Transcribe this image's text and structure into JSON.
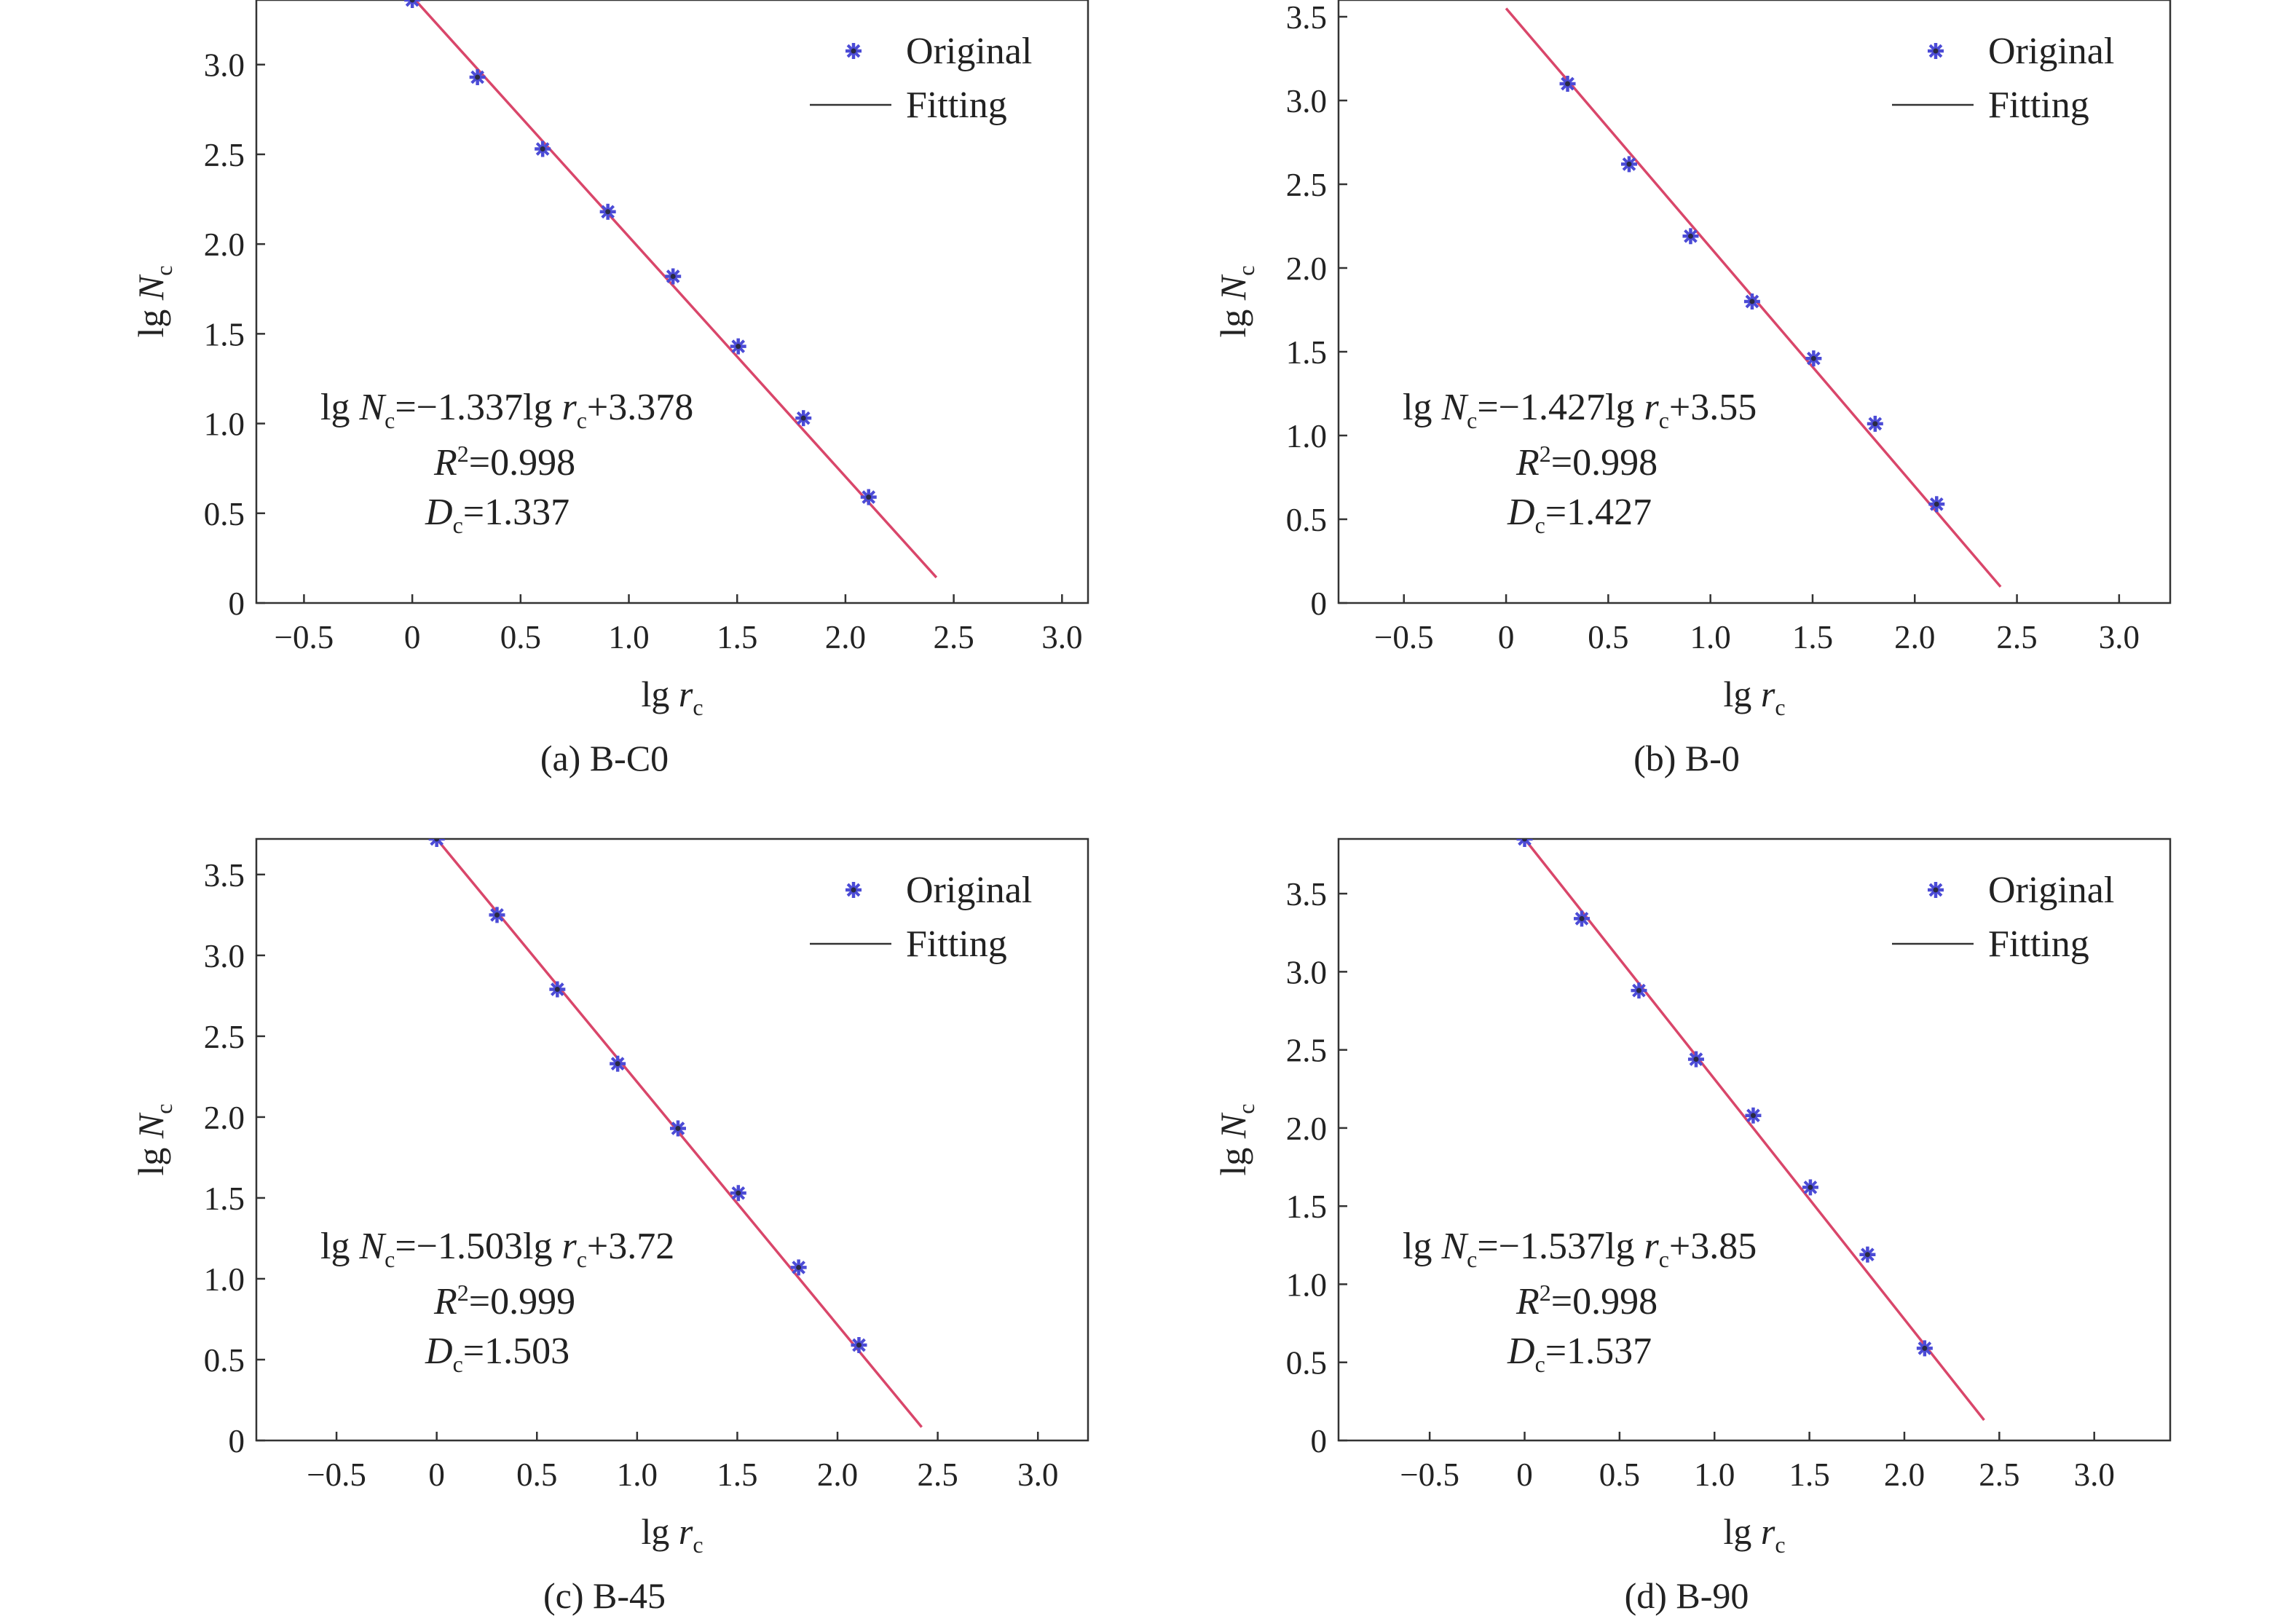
{
  "colors": {
    "marker": "#4b4bd6",
    "marker_dark": "#2a2a44",
    "fit_line": "#d9466a",
    "axis": "#333333",
    "text": "#222222"
  },
  "chart_data": [
    {
      "type": "scatter",
      "caption": "(a) B-C0",
      "xlabel": "lg r_c",
      "ylabel": "lg N_c",
      "xlim": [
        -0.72,
        3.12
      ],
      "ylim": [
        0,
        3.36
      ],
      "xticks": [
        -0.5,
        0,
        0.5,
        1.0,
        1.5,
        2.0,
        2.5,
        3.0
      ],
      "xtick_labels": [
        "−0.5",
        "0",
        "0.5",
        "1.0",
        "1.5",
        "2.0",
        "2.5",
        "3.0"
      ],
      "yticks": [
        0,
        0.5,
        1.0,
        1.5,
        2.0,
        2.5,
        3.0
      ],
      "ytick_labels": [
        "0",
        "0.5",
        "1.0",
        "1.5",
        "2.0",
        "2.5",
        "3.0"
      ],
      "grid": false,
      "legend": {
        "position": "top-right",
        "entries": [
          "Original",
          "Fitting"
        ]
      },
      "series": [
        {
          "name": "Original",
          "kind": "scatter",
          "marker": "*",
          "x": [
            0,
            0.301,
            0.602,
            0.903,
            1.204,
            1.505,
            1.806,
            2.107
          ],
          "y": [
            3.36,
            2.93,
            2.53,
            2.18,
            1.82,
            1.43,
            1.03,
            0.59
          ]
        },
        {
          "name": "Fitting",
          "kind": "line",
          "slope": -1.337,
          "intercept": 3.378,
          "x_range": [
            0,
            2.42
          ]
        }
      ],
      "equation": {
        "eq_pre": "lg ",
        "eq_mid": "=−1.337lg ",
        "eq_post": "+3.378",
        "r2_label": "R",
        "r2_sup": "2",
        "r2_value": "=0.998",
        "dc_label": "D",
        "dc_value": "=1.337"
      }
    },
    {
      "type": "scatter",
      "caption": "(b) B-0",
      "xlabel": "lg r_c",
      "ylabel": "lg N_c",
      "xlim": [
        -0.82,
        3.25
      ],
      "ylim": [
        0,
        3.6
      ],
      "xticks": [
        -0.5,
        0,
        0.5,
        1.0,
        1.5,
        2.0,
        2.5,
        3.0
      ],
      "xtick_labels": [
        "−0.5",
        "0",
        "0.5",
        "1.0",
        "1.5",
        "2.0",
        "2.5",
        "3.0"
      ],
      "yticks": [
        0,
        0.5,
        1.0,
        1.5,
        2.0,
        2.5,
        3.0,
        3.5
      ],
      "ytick_labels": [
        "0",
        "0.5",
        "1.0",
        "1.5",
        "2.0",
        "2.5",
        "3.0",
        "3.5"
      ],
      "grid": false,
      "legend": {
        "position": "top-right",
        "entries": [
          "Original",
          "Fitting"
        ]
      },
      "series": [
        {
          "name": "Original",
          "kind": "scatter",
          "marker": "*",
          "x": [
            0.301,
            0.602,
            0.903,
            1.204,
            1.505,
            1.806,
            2.107
          ],
          "y": [
            3.1,
            2.62,
            2.19,
            1.8,
            1.46,
            1.07,
            0.59
          ]
        },
        {
          "name": "Fitting",
          "kind": "line",
          "slope": -1.427,
          "intercept": 3.55,
          "x_range": [
            0,
            2.42
          ]
        }
      ],
      "equation": {
        "eq_pre": "lg ",
        "eq_mid": "=−1.427lg ",
        "eq_post": "+3.55",
        "r2_label": "R",
        "r2_sup": "2",
        "r2_value": "=0.998",
        "dc_label": "D",
        "dc_value": "=1.427"
      }
    },
    {
      "type": "scatter",
      "caption": "(c) B-45",
      "xlabel": "lg r_c",
      "ylabel": "lg N_c",
      "xlim": [
        -0.9,
        3.25
      ],
      "ylim": [
        0,
        3.72
      ],
      "xticks": [
        -0.5,
        0,
        0.5,
        1.0,
        1.5,
        2.0,
        2.5,
        3.0
      ],
      "xtick_labels": [
        "−0.5",
        "0",
        "0.5",
        "1.0",
        "1.5",
        "2.0",
        "2.5",
        "3.0"
      ],
      "yticks": [
        0,
        0.5,
        1.0,
        1.5,
        2.0,
        2.5,
        3.0,
        3.5
      ],
      "ytick_labels": [
        "0",
        "0.5",
        "1.0",
        "1.5",
        "2.0",
        "2.5",
        "3.0",
        "3.5"
      ],
      "grid": false,
      "legend": {
        "position": "top-right",
        "entries": [
          "Original",
          "Fitting"
        ]
      },
      "series": [
        {
          "name": "Original",
          "kind": "scatter",
          "marker": "*",
          "x": [
            0,
            0.301,
            0.602,
            0.903,
            1.204,
            1.505,
            1.806,
            2.107
          ],
          "y": [
            3.72,
            3.25,
            2.79,
            2.33,
            1.93,
            1.53,
            1.07,
            0.59
          ]
        },
        {
          "name": "Fitting",
          "kind": "line",
          "slope": -1.503,
          "intercept": 3.72,
          "x_range": [
            0,
            2.42
          ]
        }
      ],
      "equation": {
        "eq_pre": "lg ",
        "eq_mid": "=−1.503lg ",
        "eq_post": "+3.72",
        "r2_label": "R",
        "r2_sup": "2",
        "r2_value": "=0.999",
        "dc_label": "D",
        "dc_value": "=1.503"
      }
    },
    {
      "type": "scatter",
      "caption": "(d) B-90",
      "xlabel": "lg r_c",
      "ylabel": "lg N_c",
      "xlim": [
        -0.98,
        3.4
      ],
      "ylim": [
        0,
        3.85
      ],
      "xticks": [
        -0.5,
        0,
        0.5,
        1.0,
        1.5,
        2.0,
        2.5,
        3.0
      ],
      "xtick_labels": [
        "−0.5",
        "0",
        "0.5",
        "1.0",
        "1.5",
        "2.0",
        "2.5",
        "3.0"
      ],
      "yticks": [
        0,
        0.5,
        1.0,
        1.5,
        2.0,
        2.5,
        3.0,
        3.5
      ],
      "ytick_labels": [
        "0",
        "0.5",
        "1.0",
        "1.5",
        "2.0",
        "2.5",
        "3.0",
        "3.5"
      ],
      "grid": false,
      "legend": {
        "position": "top-right",
        "entries": [
          "Original",
          "Fitting"
        ]
      },
      "series": [
        {
          "name": "Original",
          "kind": "scatter",
          "marker": "*",
          "x": [
            0,
            0.301,
            0.602,
            0.903,
            1.204,
            1.505,
            1.806,
            2.107
          ],
          "y": [
            3.85,
            3.34,
            2.88,
            2.44,
            2.08,
            1.62,
            1.19,
            0.59
          ]
        },
        {
          "name": "Fitting",
          "kind": "line",
          "slope": -1.537,
          "intercept": 3.85,
          "x_range": [
            0,
            2.42
          ]
        }
      ],
      "equation": {
        "eq_pre": "lg ",
        "eq_mid": "=−1.537lg ",
        "eq_post": "+3.85",
        "r2_label": "R",
        "r2_sup": "2",
        "r2_value": "=0.998",
        "dc_label": "D",
        "dc_value": "=1.537"
      }
    }
  ]
}
